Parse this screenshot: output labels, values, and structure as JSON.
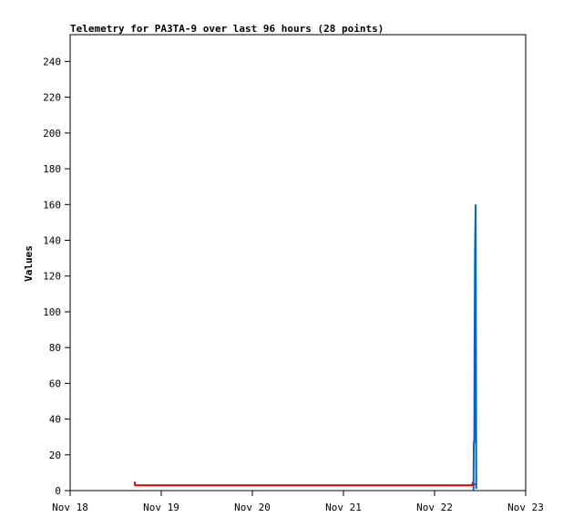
{
  "chart_data": {
    "type": "line",
    "title": "Telemetry for PA3TA-9 over last 96 hours (28 points)",
    "xlabel": "",
    "ylabel": "Values",
    "xlim": [
      "11-18 00:00",
      "11-23 00:00"
    ],
    "ylim": [
      0,
      255
    ],
    "x_ticks": [
      {
        "at": "11-18 00:00",
        "label": "Nov 18"
      },
      {
        "at": "11-19 00:00",
        "label": "Nov 19"
      },
      {
        "at": "11-20 00:00",
        "label": "Nov 20"
      },
      {
        "at": "11-21 00:00",
        "label": "Nov 21"
      },
      {
        "at": "11-22 00:00",
        "label": "Nov 22"
      },
      {
        "at": "11-23 00:00",
        "label": "Nov 23"
      }
    ],
    "y_ticks": [
      0,
      20,
      40,
      60,
      80,
      100,
      120,
      140,
      160,
      180,
      200,
      220,
      240
    ],
    "grid": false,
    "series": [
      {
        "color": "#ff0000",
        "points": [
          [
            "11-18 17:00",
            5
          ],
          [
            "11-18 17:05",
            3
          ],
          [
            "11-20 12:00",
            3
          ],
          [
            "11-22 09:50",
            3
          ],
          [
            "11-22 10:00",
            4
          ],
          [
            "11-22 10:10",
            3
          ],
          [
            "11-22 11:05",
            4
          ]
        ]
      },
      {
        "color": "#0066cc",
        "points": [
          [
            "11-22 10:15",
            0
          ],
          [
            "11-22 10:20",
            27
          ],
          [
            "11-22 10:28",
            27
          ],
          [
            "11-22 10:32",
            80
          ],
          [
            "11-22 10:40",
            133
          ],
          [
            "11-22 10:50",
            160
          ],
          [
            "11-22 11:00",
            1
          ]
        ]
      }
    ]
  }
}
